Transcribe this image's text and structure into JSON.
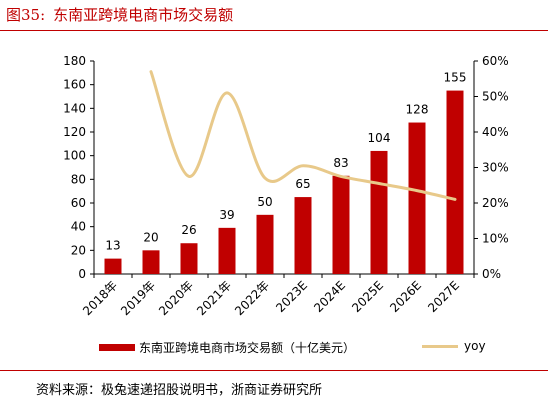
{
  "figure": {
    "number": "图35:",
    "title": "东南亚跨境电商市场交易额"
  },
  "chart_data": {
    "type": "bar",
    "categories": [
      "2018年",
      "2019年",
      "2020年",
      "2021年",
      "2022年",
      "2023E",
      "2024E",
      "2025E",
      "2026E",
      "2027E"
    ],
    "series": [
      {
        "name": "东南亚跨境电商市场交易额（十亿美元）",
        "type": "bar",
        "axis": "left",
        "color": "#c00000",
        "values": [
          13,
          20,
          26,
          39,
          50,
          65,
          83,
          104,
          128,
          155
        ],
        "labels": [
          "13",
          "20",
          "26",
          "39",
          "50",
          "65",
          "83",
          "104",
          "128",
          "155"
        ]
      },
      {
        "name": "yoy",
        "type": "line",
        "axis": "right",
        "color": "#e8c98a",
        "smooth": true,
        "values": [
          null,
          0.57,
          0.275,
          0.51,
          0.27,
          0.305,
          0.275,
          0.255,
          0.235,
          0.21
        ]
      }
    ],
    "y_left": {
      "min": 0,
      "max": 180,
      "step": 20,
      "ticks": [
        "0",
        "20",
        "40",
        "60",
        "80",
        "100",
        "120",
        "140",
        "160",
        "180"
      ]
    },
    "y_right": {
      "min": 0,
      "max": 0.6,
      "step": 0.1,
      "ticks": [
        "0%",
        "10%",
        "20%",
        "30%",
        "40%",
        "50%",
        "60%"
      ]
    },
    "grid": false,
    "legend": "bottom"
  },
  "source": "资料来源：极兔速递招股说明书，浙商证券研究所"
}
